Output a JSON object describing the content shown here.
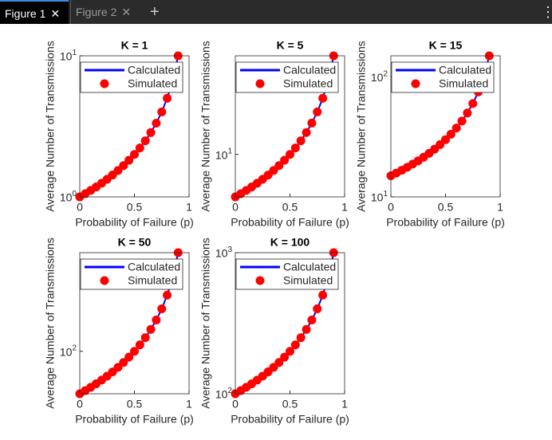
{
  "tabs": [
    {
      "label": "Figure 1"
    },
    {
      "label": "Figure 2"
    }
  ],
  "chart_data": [
    {
      "type": "line",
      "title": "K = 1",
      "xlabel": "Probability of Failure (p)",
      "ylabel": "Average Number of Transmissions",
      "x": [
        0,
        0.05,
        0.1,
        0.15,
        0.2,
        0.25,
        0.3,
        0.35,
        0.4,
        0.45,
        0.5,
        0.55,
        0.6,
        0.65,
        0.7,
        0.75,
        0.8,
        0.85,
        0.9
      ],
      "series": [
        {
          "name": "Calculated",
          "color": "#0000ff",
          "mode": "line",
          "values": [
            1,
            1.053,
            1.111,
            1.176,
            1.25,
            1.333,
            1.429,
            1.538,
            1.667,
            1.818,
            2,
            2.222,
            2.5,
            2.857,
            3.333,
            4,
            5,
            6.667,
            10
          ]
        },
        {
          "name": "Simulated",
          "color": "#ff0000",
          "mode": "markers",
          "values": [
            1,
            1.053,
            1.111,
            1.176,
            1.25,
            1.333,
            1.429,
            1.538,
            1.667,
            1.818,
            2,
            2.222,
            2.5,
            2.857,
            3.333,
            4,
            5,
            6.667,
            10
          ]
        }
      ],
      "xlim": [
        0,
        1
      ],
      "xticks": [
        0,
        0.5,
        1
      ],
      "ylim": [
        1,
        10
      ],
      "yscale": "log",
      "yticks": [
        {
          "value": 1,
          "label": "10^0"
        },
        {
          "value": 10,
          "label": "10^1"
        }
      ],
      "legend": "northeast"
    },
    {
      "type": "line",
      "title": "K = 5",
      "xlabel": "Probability of Failure (p)",
      "ylabel": "Average Number of Transmissions",
      "x": [
        0,
        0.05,
        0.1,
        0.15,
        0.2,
        0.25,
        0.3,
        0.35,
        0.4,
        0.45,
        0.5,
        0.55,
        0.6,
        0.65,
        0.7,
        0.75,
        0.8,
        0.85,
        0.9
      ],
      "series": [
        {
          "name": "Calculated",
          "color": "#0000ff",
          "mode": "line",
          "values": [
            5,
            5.263,
            5.556,
            5.882,
            6.25,
            6.667,
            7.143,
            7.692,
            8.333,
            9.091,
            10,
            11.11,
            12.5,
            14.29,
            16.67,
            20,
            25,
            33.33,
            50
          ]
        },
        {
          "name": "Simulated",
          "color": "#ff0000",
          "mode": "markers",
          "values": [
            5,
            5.263,
            5.556,
            5.882,
            6.25,
            6.667,
            7.143,
            7.692,
            8.333,
            9.091,
            10,
            11.11,
            12.5,
            14.29,
            16.67,
            20,
            25,
            33.33,
            50
          ]
        }
      ],
      "xlim": [
        0,
        1
      ],
      "xticks": [
        0,
        0.5,
        1
      ],
      "ylim": [
        5,
        50
      ],
      "yscale": "log",
      "yticks": [
        {
          "value": 10,
          "label": "10^1"
        }
      ],
      "legend": "northeast"
    },
    {
      "type": "line",
      "title": "K = 15",
      "xlabel": "Probability of Failure (p)",
      "ylabel": "Average Number of Transmissions",
      "x": [
        0,
        0.05,
        0.1,
        0.15,
        0.2,
        0.25,
        0.3,
        0.35,
        0.4,
        0.45,
        0.5,
        0.55,
        0.6,
        0.65,
        0.7,
        0.75,
        0.8,
        0.85,
        0.9
      ],
      "series": [
        {
          "name": "Calculated",
          "color": "#0000ff",
          "mode": "line",
          "values": [
            15,
            15.79,
            16.67,
            17.65,
            18.75,
            20,
            21.43,
            23.08,
            25,
            27.27,
            30,
            33.33,
            37.5,
            42.86,
            50,
            60,
            75,
            100,
            150
          ]
        },
        {
          "name": "Simulated",
          "color": "#ff0000",
          "mode": "markers",
          "values": [
            15,
            15.79,
            16.67,
            17.65,
            18.75,
            20,
            21.43,
            23.08,
            25,
            27.27,
            30,
            33.33,
            37.5,
            42.86,
            50,
            60,
            75,
            100,
            150
          ]
        }
      ],
      "xlim": [
        0,
        1
      ],
      "xticks": [
        0,
        0.5,
        1
      ],
      "ylim": [
        10,
        150
      ],
      "yscale": "log",
      "yticks": [
        {
          "value": 10,
          "label": "10^1"
        },
        {
          "value": 100,
          "label": "10^2"
        }
      ],
      "legend": "northeast"
    },
    {
      "type": "line",
      "title": "K = 50",
      "xlabel": "Probability of Failure (p)",
      "ylabel": "Average Number of Transmissions",
      "x": [
        0,
        0.05,
        0.1,
        0.15,
        0.2,
        0.25,
        0.3,
        0.35,
        0.4,
        0.45,
        0.5,
        0.55,
        0.6,
        0.65,
        0.7,
        0.75,
        0.8,
        0.85,
        0.9
      ],
      "series": [
        {
          "name": "Calculated",
          "color": "#0000ff",
          "mode": "line",
          "values": [
            50,
            52.63,
            55.56,
            58.82,
            62.5,
            66.67,
            71.43,
            76.92,
            83.33,
            90.91,
            100,
            111.1,
            125,
            142.9,
            166.7,
            200,
            250,
            333.3,
            500
          ]
        },
        {
          "name": "Simulated",
          "color": "#ff0000",
          "mode": "markers",
          "values": [
            50,
            52.63,
            55.56,
            58.82,
            62.5,
            66.67,
            71.43,
            76.92,
            83.33,
            90.91,
            100,
            111.1,
            125,
            142.9,
            166.7,
            200,
            250,
            333.3,
            500
          ]
        }
      ],
      "xlim": [
        0,
        1
      ],
      "xticks": [
        0,
        0.5,
        1
      ],
      "ylim": [
        50,
        500
      ],
      "yscale": "log",
      "yticks": [
        {
          "value": 100,
          "label": "10^2"
        }
      ],
      "legend": "northeast"
    },
    {
      "type": "line",
      "title": "K = 100",
      "xlabel": "Probability of Failure (p)",
      "ylabel": "Average Number of Transmissions",
      "x": [
        0,
        0.05,
        0.1,
        0.15,
        0.2,
        0.25,
        0.3,
        0.35,
        0.4,
        0.45,
        0.5,
        0.55,
        0.6,
        0.65,
        0.7,
        0.75,
        0.8,
        0.85,
        0.9
      ],
      "series": [
        {
          "name": "Calculated",
          "color": "#0000ff",
          "mode": "line",
          "values": [
            100,
            105.3,
            111.1,
            117.6,
            125,
            133.3,
            142.9,
            153.8,
            166.7,
            181.8,
            200,
            222.2,
            250,
            285.7,
            333.3,
            400,
            500,
            666.7,
            1000
          ]
        },
        {
          "name": "Simulated",
          "color": "#ff0000",
          "mode": "markers",
          "values": [
            100,
            105.3,
            111.1,
            117.6,
            125,
            133.3,
            142.9,
            153.8,
            166.7,
            181.8,
            200,
            222.2,
            250,
            285.7,
            333.3,
            400,
            500,
            666.7,
            1000
          ]
        }
      ],
      "xlim": [
        0,
        1
      ],
      "xticks": [
        0,
        0.5,
        1
      ],
      "ylim": [
        100,
        1000
      ],
      "yscale": "log",
      "yticks": [
        {
          "value": 100,
          "label": "10^2"
        },
        {
          "value": 1000,
          "label": "10^3"
        }
      ],
      "legend": "northeast"
    }
  ]
}
